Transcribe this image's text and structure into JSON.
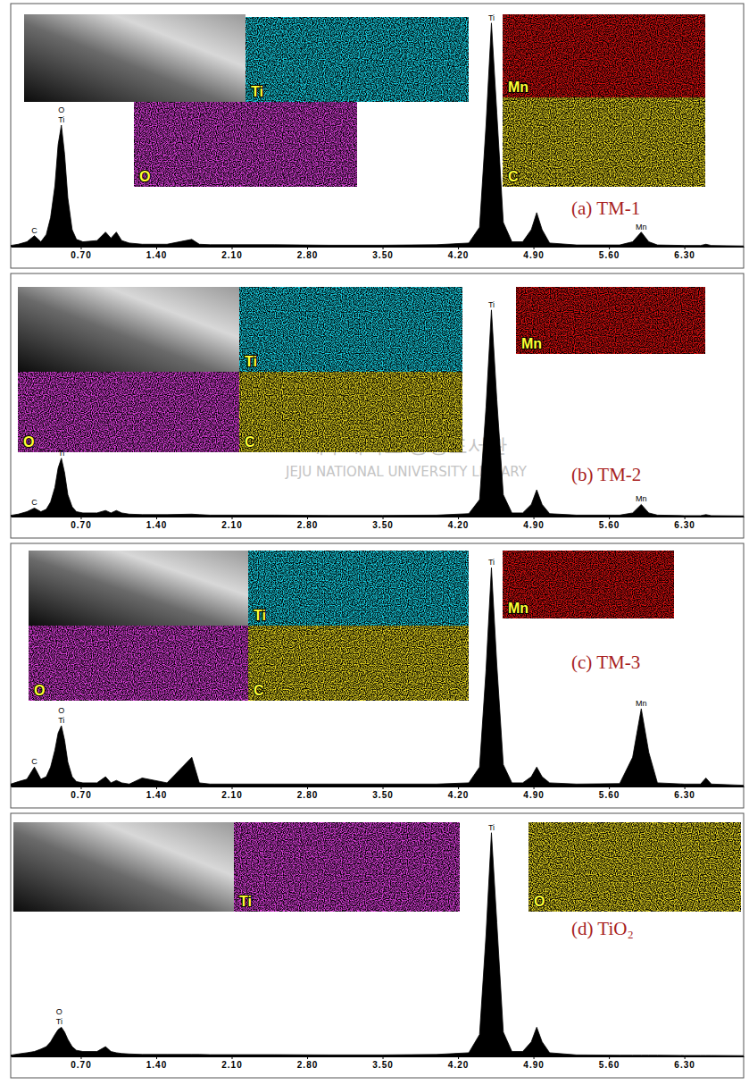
{
  "chart_data": [
    {
      "type": "area",
      "title": "(a) TM-1",
      "color": "#000000",
      "grid": false,
      "tick_labels": "x",
      "xlim": [
        0.05,
        6.85
      ],
      "ylim": [
        0,
        100
      ],
      "xticks": [
        {
          "value": 0.7,
          "label": "0.70"
        },
        {
          "value": 1.4,
          "label": "1.40"
        },
        {
          "value": 2.1,
          "label": "2.10"
        },
        {
          "value": 2.8,
          "label": "2.80"
        },
        {
          "value": 3.5,
          "label": "3.50"
        },
        {
          "value": 4.2,
          "label": "4.20"
        },
        {
          "value": 4.9,
          "label": "4.90"
        },
        {
          "value": 5.6,
          "label": "5.60"
        },
        {
          "value": 6.3,
          "label": "6.30"
        }
      ],
      "x": [
        0.05,
        0.12,
        0.2,
        0.27,
        0.33,
        0.38,
        0.42,
        0.46,
        0.49,
        0.52,
        0.55,
        0.58,
        0.62,
        0.66,
        0.72,
        0.85,
        0.93,
        0.98,
        1.03,
        1.08,
        1.15,
        1.27,
        1.5,
        1.73,
        1.8,
        1.9,
        2.5,
        3.0,
        3.5,
        4.0,
        4.3,
        4.4,
        4.46,
        4.51,
        4.56,
        4.62,
        4.7,
        4.8,
        4.88,
        4.93,
        4.98,
        5.05,
        5.3,
        5.7,
        5.82,
        5.9,
        5.97,
        6.05,
        6.3,
        6.45,
        6.5,
        6.55,
        6.85
      ],
      "values": [
        0.5,
        1,
        2,
        4.5,
        2,
        5,
        12,
        25,
        42,
        50,
        38,
        20,
        7,
        3,
        2,
        2.5,
        6,
        3.5,
        6,
        2.5,
        1.5,
        1,
        1,
        3,
        1,
        0.8,
        0.8,
        0.6,
        0.6,
        0.8,
        1.5,
        8,
        50,
        92,
        55,
        10,
        2,
        2,
        7,
        14,
        7,
        1.5,
        0.7,
        0.7,
        2,
        6,
        2,
        0.7,
        0.5,
        0.5,
        1,
        0.5,
        0.3
      ],
      "annotations": [
        {
          "text": "C",
          "x": 0.27,
          "y": 4.5
        },
        {
          "text": "O",
          "x": 0.52,
          "y": 54
        },
        {
          "text": "Ti",
          "x": 0.52,
          "y": 50
        },
        {
          "text": "Ti",
          "x": 4.51,
          "y": 92
        },
        {
          "text": "Mn",
          "x": 5.9,
          "y": 6
        }
      ],
      "maps": [
        {
          "label": "Ti",
          "color": "#19d3e6"
        },
        {
          "label": "O",
          "color": "#e040e0"
        },
        {
          "label": "Mn",
          "color": "#e01010"
        },
        {
          "label": "C",
          "color": "#e8d820"
        }
      ]
    },
    {
      "type": "area",
      "title": "(b) TM-2",
      "color": "#000000",
      "grid": false,
      "tick_labels": "x",
      "xlim": [
        0.05,
        6.85
      ],
      "ylim": [
        0,
        100
      ],
      "xticks": [
        {
          "value": 0.7,
          "label": "0.70"
        },
        {
          "value": 1.4,
          "label": "1.40"
        },
        {
          "value": 2.1,
          "label": "2.10"
        },
        {
          "value": 2.8,
          "label": "2.80"
        },
        {
          "value": 3.5,
          "label": "3.50"
        },
        {
          "value": 4.2,
          "label": "4.20"
        },
        {
          "value": 4.9,
          "label": "4.90"
        },
        {
          "value": 5.6,
          "label": "5.60"
        },
        {
          "value": 6.3,
          "label": "6.30"
        }
      ],
      "x": [
        0.05,
        0.12,
        0.2,
        0.27,
        0.33,
        0.38,
        0.42,
        0.46,
        0.49,
        0.52,
        0.55,
        0.58,
        0.62,
        0.66,
        0.72,
        0.85,
        0.93,
        0.98,
        1.03,
        1.08,
        1.15,
        1.27,
        1.5,
        1.73,
        1.8,
        1.9,
        2.5,
        3.0,
        3.5,
        4.0,
        4.3,
        4.4,
        4.46,
        4.51,
        4.56,
        4.62,
        4.7,
        4.8,
        4.88,
        4.93,
        4.98,
        5.05,
        5.3,
        5.7,
        5.82,
        5.9,
        5.97,
        6.05,
        6.3,
        6.45,
        6.5,
        6.55,
        6.85
      ],
      "values": [
        0.5,
        1,
        2,
        3.5,
        2,
        3,
        6,
        12,
        20,
        24,
        18,
        9,
        4,
        2,
        1.5,
        1.5,
        2.5,
        1.5,
        2.5,
        1.5,
        1,
        0.8,
        0.8,
        1,
        0.8,
        0.6,
        0.6,
        0.5,
        0.5,
        0.6,
        1.2,
        7,
        45,
        85,
        48,
        9,
        1.5,
        1.5,
        5,
        11,
        5,
        1.2,
        0.6,
        0.6,
        1.5,
        5,
        1.5,
        0.6,
        0.4,
        0.4,
        0.8,
        0.4,
        0.3
      ],
      "annotations": [
        {
          "text": "C",
          "x": 0.27,
          "y": 3.5
        },
        {
          "text": "Ti",
          "x": 0.52,
          "y": 24
        },
        {
          "text": "Ti",
          "x": 4.51,
          "y": 85
        },
        {
          "text": "Mn",
          "x": 5.9,
          "y": 5
        }
      ],
      "maps": [
        {
          "label": "Ti",
          "color": "#19d3e6"
        },
        {
          "label": "Mn",
          "color": "#e01010"
        },
        {
          "label": "O",
          "color": "#e040e0"
        },
        {
          "label": "C",
          "color": "#e8d820"
        }
      ],
      "watermark": [
        "제주대학교 중앙도서관",
        "JEJU NATIONAL UNIVERSITY LIBRARY"
      ]
    },
    {
      "type": "area",
      "title": "(c) TM-3",
      "color": "#000000",
      "grid": false,
      "tick_labels": "x",
      "xlim": [
        0.05,
        6.85
      ],
      "ylim": [
        0,
        100
      ],
      "xticks": [
        {
          "value": 0.7,
          "label": "0.70"
        },
        {
          "value": 1.4,
          "label": "1.40"
        },
        {
          "value": 2.1,
          "label": "2.10"
        },
        {
          "value": 2.8,
          "label": "2.80"
        },
        {
          "value": 3.5,
          "label": "3.50"
        },
        {
          "value": 4.2,
          "label": "4.20"
        },
        {
          "value": 4.9,
          "label": "4.90"
        },
        {
          "value": 5.6,
          "label": "5.60"
        },
        {
          "value": 6.3,
          "label": "6.30"
        }
      ],
      "x": [
        0.05,
        0.12,
        0.2,
        0.27,
        0.33,
        0.38,
        0.42,
        0.46,
        0.49,
        0.52,
        0.55,
        0.58,
        0.62,
        0.66,
        0.72,
        0.85,
        0.93,
        0.98,
        1.03,
        1.08,
        1.15,
        1.27,
        1.5,
        1.73,
        1.8,
        1.9,
        2.5,
        3.0,
        3.5,
        4.0,
        4.3,
        4.4,
        4.46,
        4.51,
        4.56,
        4.62,
        4.7,
        4.8,
        4.88,
        4.93,
        4.98,
        5.05,
        5.3,
        5.7,
        5.82,
        5.9,
        5.97,
        6.05,
        6.3,
        6.45,
        6.5,
        6.55,
        6.85
      ],
      "values": [
        1,
        2,
        3,
        8,
        3,
        4,
        8,
        15,
        22,
        25,
        19,
        10,
        4,
        2,
        1.5,
        1.5,
        4,
        1.5,
        2.5,
        1.5,
        1,
        3.5,
        1.5,
        12,
        1.5,
        1,
        1,
        1,
        1,
        1,
        1.5,
        8,
        48,
        90,
        50,
        9,
        1.5,
        1.5,
        4,
        8,
        4,
        1.5,
        1,
        1.2,
        12,
        32,
        14,
        1.5,
        1,
        1,
        3.5,
        1,
        0.5
      ],
      "annotations": [
        {
          "text": "C",
          "x": 0.27,
          "y": 8
        },
        {
          "text": "O",
          "x": 0.52,
          "y": 29
        },
        {
          "text": "Ti",
          "x": 0.52,
          "y": 25
        },
        {
          "text": "Ti",
          "x": 4.51,
          "y": 90
        },
        {
          "text": "Mn",
          "x": 5.9,
          "y": 32
        }
      ],
      "maps": [
        {
          "label": "Ti",
          "color": "#19d3e6"
        },
        {
          "label": "Mn",
          "color": "#e01010"
        },
        {
          "label": "O",
          "color": "#e040e0"
        },
        {
          "label": "C",
          "color": "#e8d820"
        }
      ]
    },
    {
      "type": "area",
      "title": "(d) TiO₂",
      "color": "#000000",
      "grid": false,
      "tick_labels": "x",
      "xlim": [
        0.05,
        6.85
      ],
      "ylim": [
        0,
        100
      ],
      "xticks": [
        {
          "value": 0.7,
          "label": "0.70"
        },
        {
          "value": 1.4,
          "label": "1.40"
        },
        {
          "value": 2.1,
          "label": "2.10"
        },
        {
          "value": 2.8,
          "label": "2.80"
        },
        {
          "value": 3.5,
          "label": "3.50"
        },
        {
          "value": 4.2,
          "label": "4.20"
        },
        {
          "value": 4.9,
          "label": "4.90"
        },
        {
          "value": 5.6,
          "label": "5.60"
        },
        {
          "value": 6.3,
          "label": "6.30"
        }
      ],
      "x": [
        0.05,
        0.12,
        0.2,
        0.27,
        0.33,
        0.38,
        0.42,
        0.46,
        0.49,
        0.52,
        0.55,
        0.58,
        0.62,
        0.66,
        0.72,
        0.85,
        0.93,
        0.98,
        1.03,
        1.08,
        1.15,
        1.27,
        1.5,
        1.73,
        1.8,
        1.9,
        2.5,
        3.0,
        3.5,
        4.0,
        4.3,
        4.4,
        4.46,
        4.51,
        4.56,
        4.62,
        4.7,
        4.8,
        4.88,
        4.93,
        4.98,
        5.05,
        5.3,
        5.7,
        5.82,
        5.9,
        5.97,
        6.05,
        6.3,
        6.45,
        6.5,
        6.55,
        6.85
      ],
      "values": [
        0.5,
        1,
        1.5,
        2,
        3,
        4,
        6,
        9,
        11,
        12,
        10,
        7,
        4,
        2.5,
        2,
        2,
        4,
        2,
        1.5,
        1.2,
        1,
        0.8,
        0.8,
        0.8,
        0.8,
        0.7,
        0.7,
        0.6,
        0.6,
        0.8,
        1.5,
        9,
        50,
        92,
        55,
        10,
        2,
        2,
        6,
        12,
        6,
        1.5,
        0.6,
        0.5,
        0.5,
        0.5,
        0.5,
        0.5,
        0.4,
        0.4,
        0.4,
        0.4,
        0.3
      ],
      "annotations": [
        {
          "text": "O",
          "x": 0.5,
          "y": 16
        },
        {
          "text": "Ti",
          "x": 0.5,
          "y": 12
        },
        {
          "text": "Ti",
          "x": 4.51,
          "y": 92
        }
      ],
      "maps": [
        {
          "label": "Ti",
          "color": "#e040e0"
        },
        {
          "label": "O",
          "color": "#e8d820"
        }
      ]
    }
  ]
}
